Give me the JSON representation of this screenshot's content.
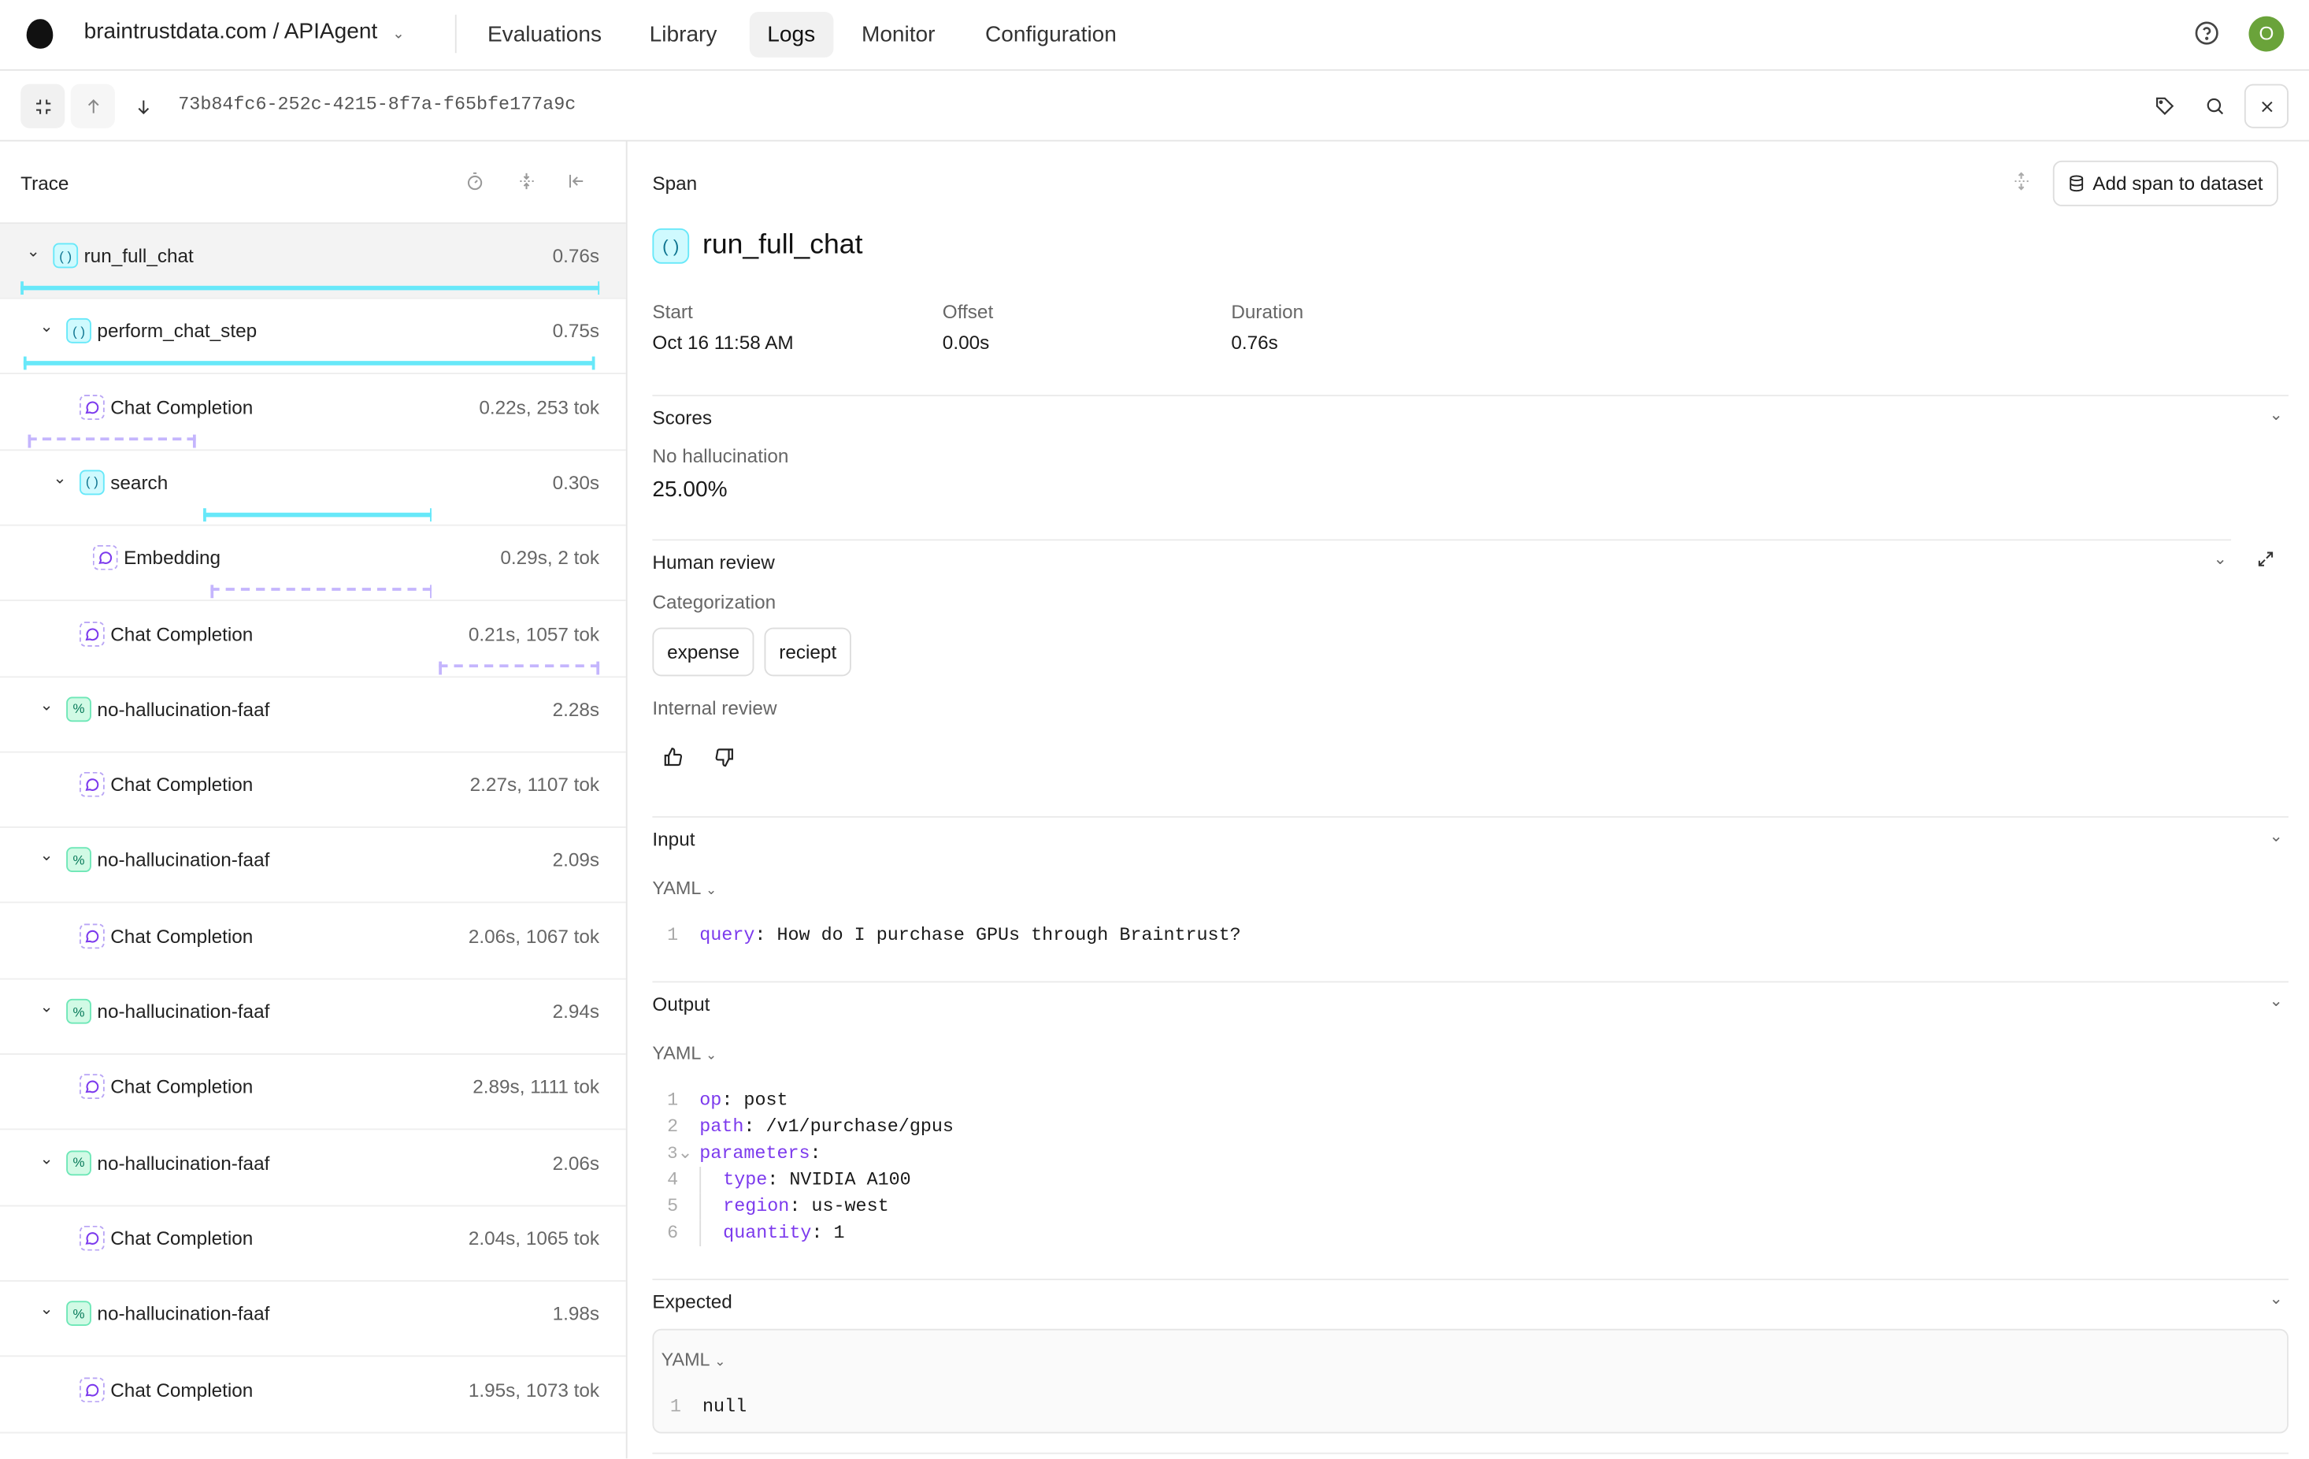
{
  "nav": {
    "project": "braintrustdata.com / APIAgent",
    "tabs": [
      "Evaluations",
      "Library",
      "Logs",
      "Monitor",
      "Configuration"
    ],
    "active_tab": "Logs",
    "avatar_initial": "O",
    "avatar_color": "#6aa33a"
  },
  "toolbar": {
    "trace_id": "73b84fc6-252c-4215-8f7a-f65bfe177a9c"
  },
  "trace": {
    "title": "Trace",
    "total_s": 0.76,
    "rows": [
      {
        "name": "run_full_chat",
        "type": "task",
        "level": 0,
        "meta": "0.76s",
        "expandable": true,
        "selected": true,
        "bar": {
          "start_s": 0,
          "duration_s": 0.76
        }
      },
      {
        "name": "perform_chat_step",
        "type": "task",
        "level": 1,
        "meta": "0.75s",
        "expandable": true,
        "bar": {
          "start_s": 0.004,
          "duration_s": 0.75
        }
      },
      {
        "name": "Chat Completion",
        "type": "llm",
        "level": 2,
        "meta": "0.22s, 253 tok",
        "bar": {
          "start_s": 0.01,
          "duration_s": 0.22
        }
      },
      {
        "name": "search",
        "type": "task",
        "level": 2,
        "meta": "0.30s",
        "expandable": true,
        "bar": {
          "start_s": 0.24,
          "duration_s": 0.3
        }
      },
      {
        "name": "Embedding",
        "type": "llm",
        "level": 3,
        "meta": "0.29s, 2 tok",
        "bar": {
          "start_s": 0.25,
          "duration_s": 0.29
        }
      },
      {
        "name": "Chat Completion",
        "type": "llm",
        "level": 2,
        "meta": "0.21s, 1057 tok",
        "bar": {
          "start_s": 0.55,
          "duration_s": 0.21
        }
      },
      {
        "name": "no-hallucination-faaf",
        "type": "score",
        "level": 1,
        "meta": "2.28s",
        "expandable": true
      },
      {
        "name": "Chat Completion",
        "type": "llm",
        "level": 2,
        "meta": "2.27s, 1107 tok"
      },
      {
        "name": "no-hallucination-faaf",
        "type": "score",
        "level": 1,
        "meta": "2.09s",
        "expandable": true
      },
      {
        "name": "Chat Completion",
        "type": "llm",
        "level": 2,
        "meta": "2.06s, 1067 tok"
      },
      {
        "name": "no-hallucination-faaf",
        "type": "score",
        "level": 1,
        "meta": "2.94s",
        "expandable": true
      },
      {
        "name": "Chat Completion",
        "type": "llm",
        "level": 2,
        "meta": "2.89s, 1111 tok"
      },
      {
        "name": "no-hallucination-faaf",
        "type": "score",
        "level": 1,
        "meta": "2.06s",
        "expandable": true
      },
      {
        "name": "Chat Completion",
        "type": "llm",
        "level": 2,
        "meta": "2.04s, 1065 tok"
      },
      {
        "name": "no-hallucination-faaf",
        "type": "score",
        "level": 1,
        "meta": "1.98s",
        "expandable": true
      },
      {
        "name": "Chat Completion",
        "type": "llm",
        "level": 2,
        "meta": "1.95s, 1073 tok"
      }
    ]
  },
  "span": {
    "header": "Span",
    "add_button": "Add span to dataset",
    "name": "run_full_chat",
    "start_label": "Start",
    "start": "Oct 16 11:58 AM",
    "offset_label": "Offset",
    "offset": "0.00s",
    "duration_label": "Duration",
    "duration": "0.76s",
    "scores": {
      "title": "Scores",
      "name": "No hallucination",
      "value": "25.00%"
    },
    "human_review": {
      "title": "Human review",
      "categorization_label": "Categorization",
      "categories": [
        "expense",
        "reciept"
      ],
      "internal_label": "Internal review"
    },
    "input": {
      "title": "Input",
      "format": "YAML",
      "lines": [
        {
          "key": "query",
          "value": " How do I purchase GPUs through Braintrust?"
        }
      ]
    },
    "output": {
      "title": "Output",
      "format": "YAML",
      "lines": [
        {
          "key": "op",
          "value": " post",
          "indent": 0
        },
        {
          "key": "path",
          "value": " /v1/purchase/gpus",
          "indent": 0
        },
        {
          "key": "parameters",
          "value": "",
          "indent": 0,
          "fold": true
        },
        {
          "key": "type",
          "value": " NVIDIA A100",
          "indent": 1
        },
        {
          "key": "region",
          "value": " us-west",
          "indent": 1
        },
        {
          "key": "quantity",
          "value": " 1",
          "indent": 1
        }
      ]
    },
    "expected": {
      "title": "Expected",
      "format": "YAML",
      "lines": [
        {
          "key": "",
          "value": "null"
        }
      ]
    }
  }
}
